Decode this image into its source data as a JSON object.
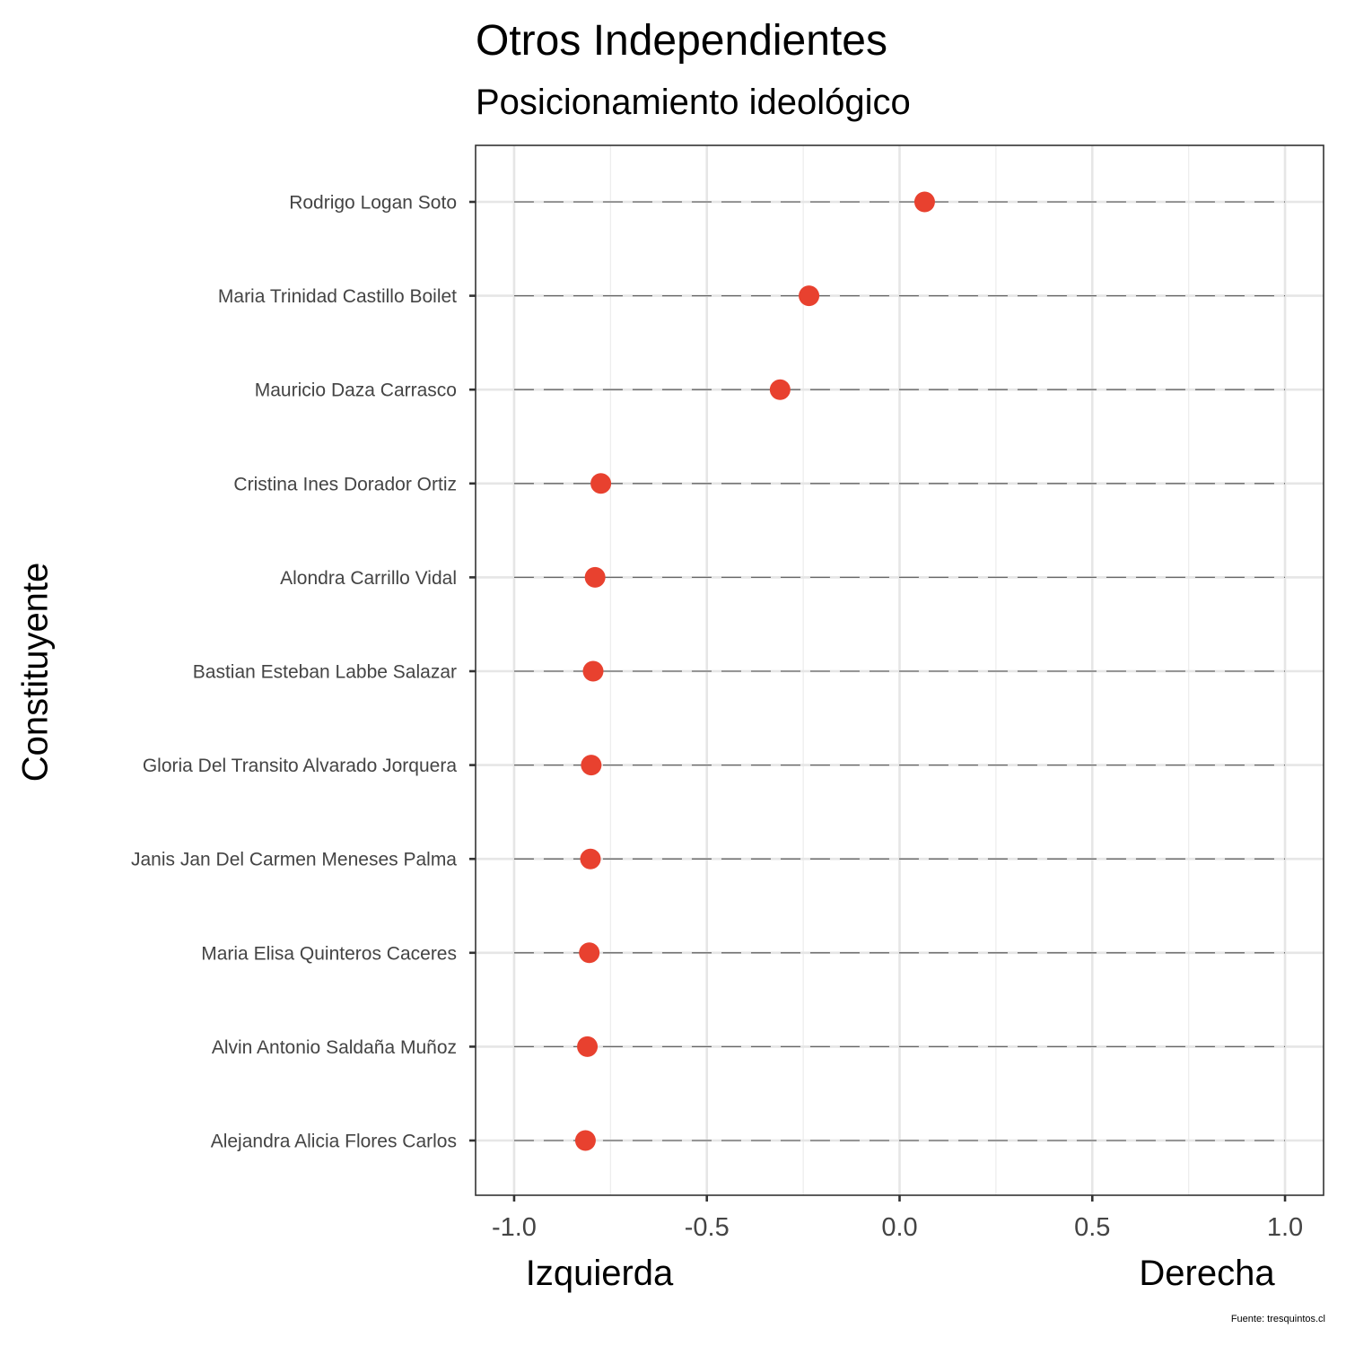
{
  "chart_data": {
    "type": "scatter",
    "title": "Otros Independientes",
    "subtitle": "Posicionamiento ideológico",
    "ylabel": "Constituyente",
    "xlabel_left": "Izquierda",
    "xlabel_right": "Derecha",
    "caption": "Fuente: tresquintos.cl",
    "xlim": [
      -1.1,
      1.1
    ],
    "xticks": [
      -1.0,
      -0.5,
      0.0,
      0.5,
      1.0
    ],
    "xtick_labels": [
      "-1.0",
      "-0.5",
      "0.0",
      "0.5",
      "1.0"
    ],
    "grid": true,
    "point_color": "#E8412F",
    "categories": [
      "Rodrigo Logan Soto",
      "Maria Trinidad Castillo Boilet",
      "Mauricio Daza Carrasco",
      "Cristina Ines Dorador Ortiz",
      "Alondra Carrillo Vidal",
      "Bastian Esteban Labbe Salazar",
      "Gloria Del Transito Alvarado Jorquera",
      "Janis Jan Del Carmen Meneses Palma",
      "Maria Elisa Quinteros Caceres",
      "Alvin Antonio Saldaña Muñoz",
      "Alejandra Alicia Flores Carlos"
    ],
    "values": [
      0.065,
      -0.235,
      -0.31,
      -0.775,
      -0.79,
      -0.795,
      -0.8,
      -0.802,
      -0.805,
      -0.81,
      -0.815
    ]
  }
}
